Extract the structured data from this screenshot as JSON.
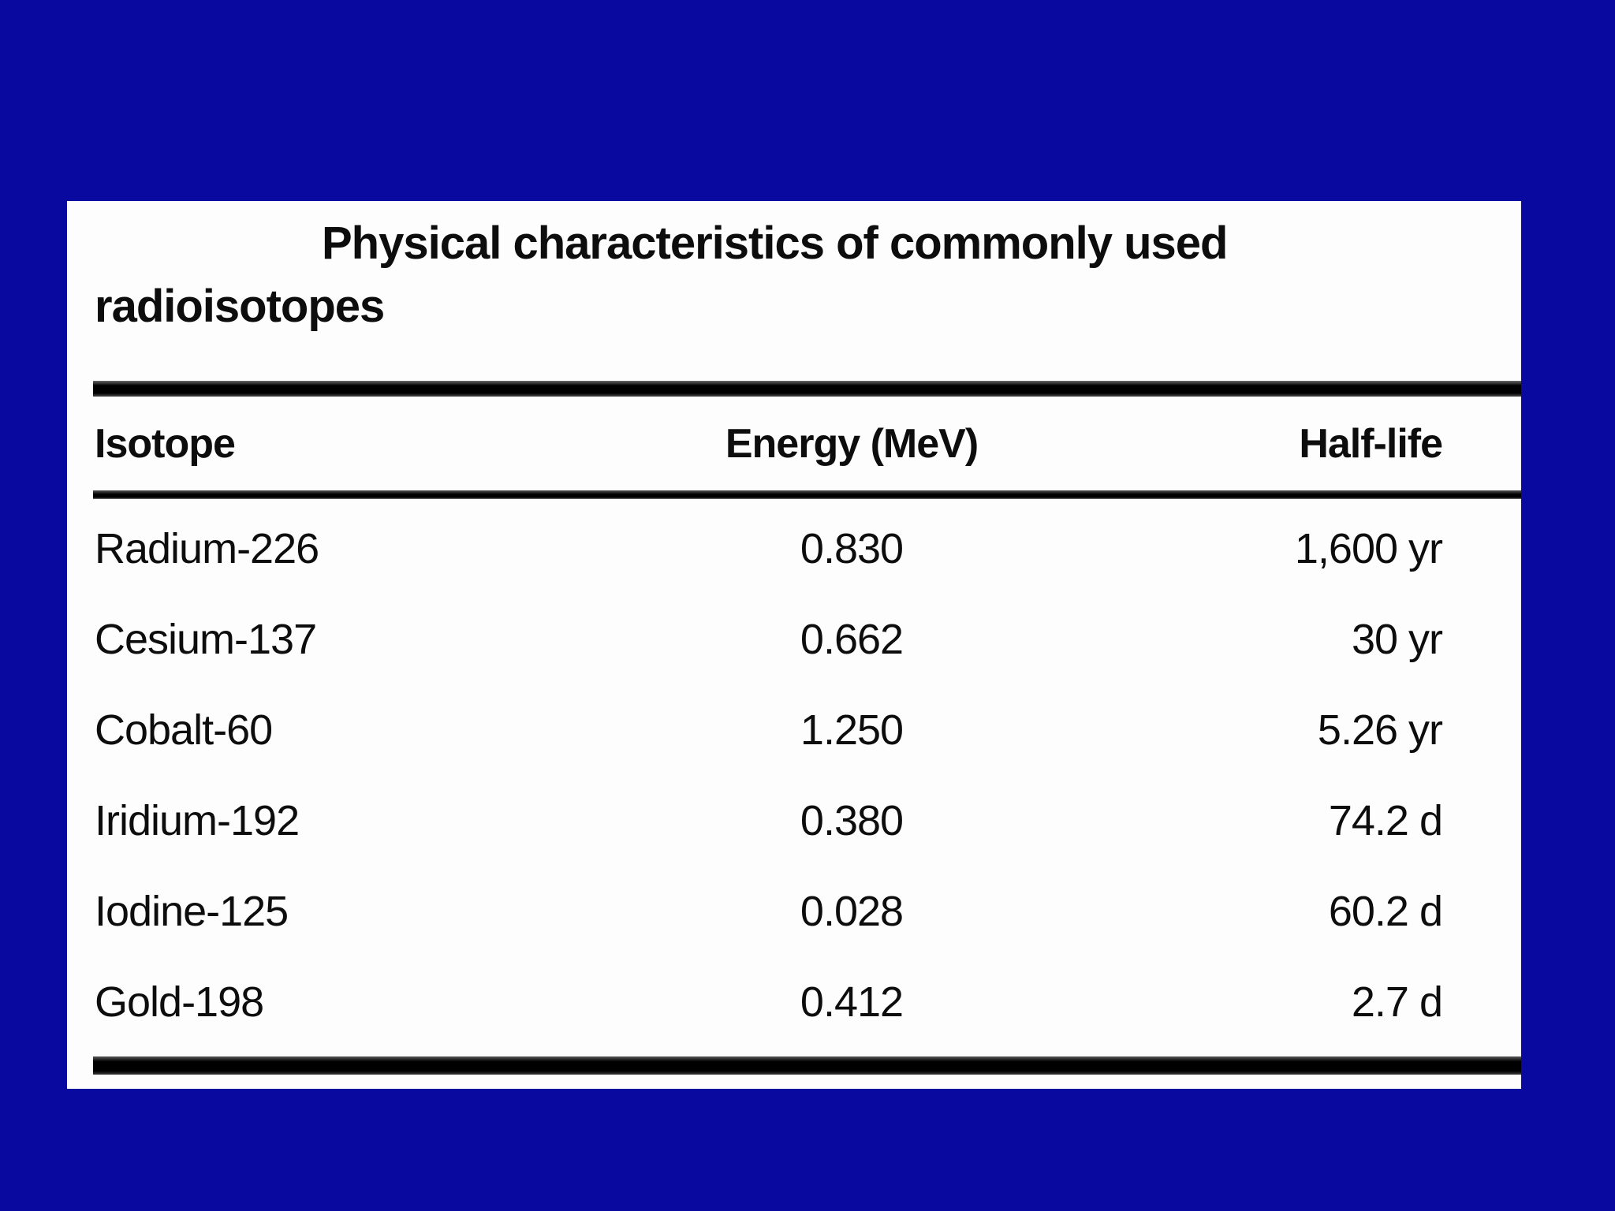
{
  "slide": {
    "background_color": "#0909a0",
    "panel_color": "#fdfdfd",
    "text_color": "#0d0d0d",
    "rule_color": "#000000"
  },
  "figure": {
    "title_line1": "Physical characteristics of commonly used",
    "title_line2": "radioisotopes",
    "columns": [
      "Isotope",
      "Energy (MeV)",
      "Half-life"
    ],
    "rows": [
      {
        "isotope": "Radium-226",
        "energy": "0.830",
        "half_life": "1,600 yr"
      },
      {
        "isotope": "Cesium-137",
        "energy": "0.662",
        "half_life": "30 yr"
      },
      {
        "isotope": "Cobalt-60",
        "energy": "1.250",
        "half_life": "5.26 yr"
      },
      {
        "isotope": "Iridium-192",
        "energy": "0.380",
        "half_life": "74.2 d"
      },
      {
        "isotope": "Iodine-125",
        "energy": "0.028",
        "half_life": "60.2 d"
      },
      {
        "isotope": "Gold-198",
        "energy": "0.412",
        "half_life": "2.7 d"
      }
    ]
  }
}
